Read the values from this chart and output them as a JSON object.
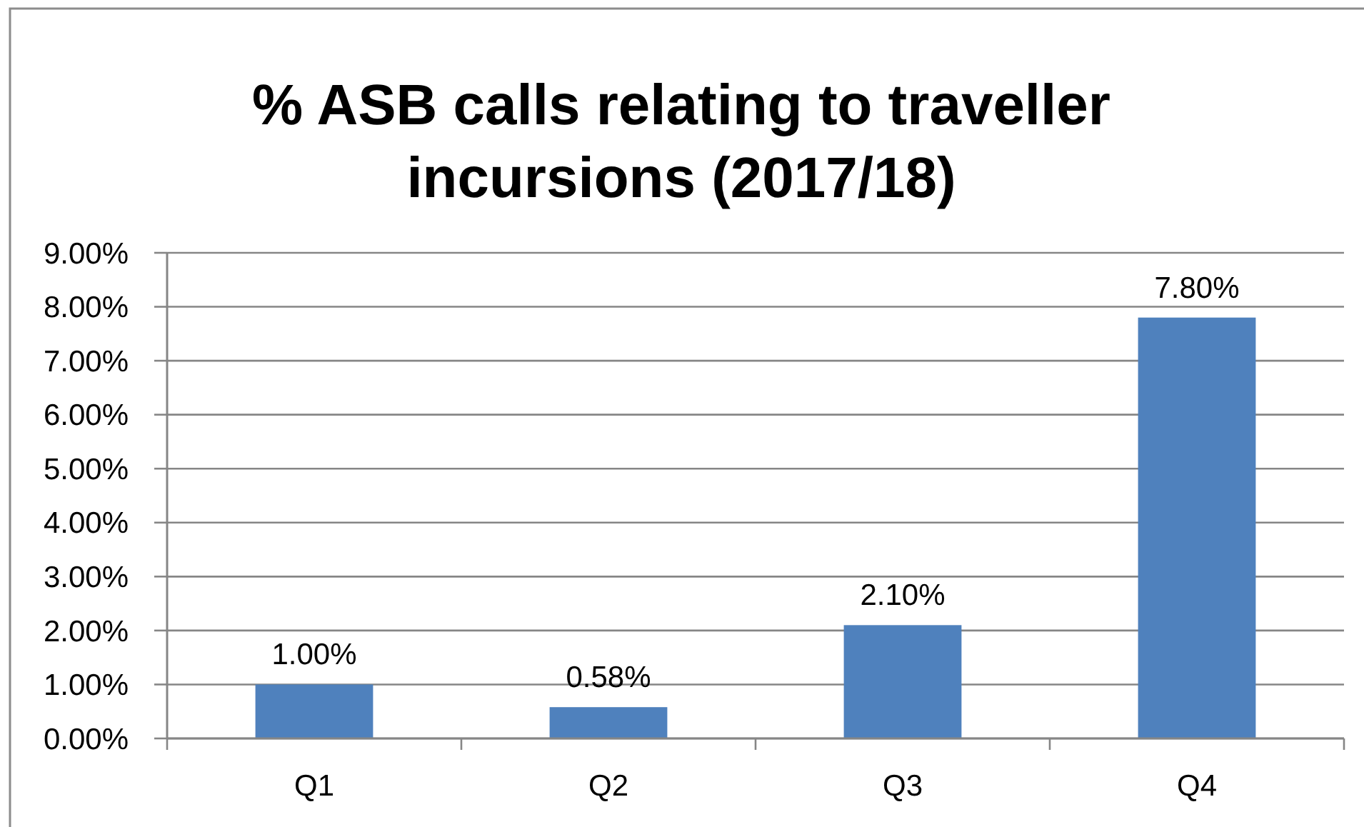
{
  "chart_data": {
    "type": "bar",
    "title": "% ASB calls relating to traveller incursions (2017/18)",
    "categories": [
      "Q1",
      "Q2",
      "Q3",
      "Q4"
    ],
    "values": [
      1.0,
      0.58,
      2.1,
      7.8
    ],
    "color": "#4f81bd",
    "value_labels": [
      "1.00%",
      "0.58%",
      "2.10%",
      "7.80%"
    ],
    "ylim": [
      0,
      9
    ],
    "yticks": [
      {
        "value": 0,
        "label": "0.00%"
      },
      {
        "value": 1,
        "label": "1.00%"
      },
      {
        "value": 2,
        "label": "2.00%"
      },
      {
        "value": 3,
        "label": "3.00%"
      },
      {
        "value": 4,
        "label": "4.00%"
      },
      {
        "value": 5,
        "label": "5.00%"
      },
      {
        "value": 6,
        "label": "6.00%"
      },
      {
        "value": 7,
        "label": "7.00%"
      },
      {
        "value": 8,
        "label": "8.00%"
      },
      {
        "value": 9,
        "label": "9.00%"
      }
    ],
    "grid": "y"
  }
}
